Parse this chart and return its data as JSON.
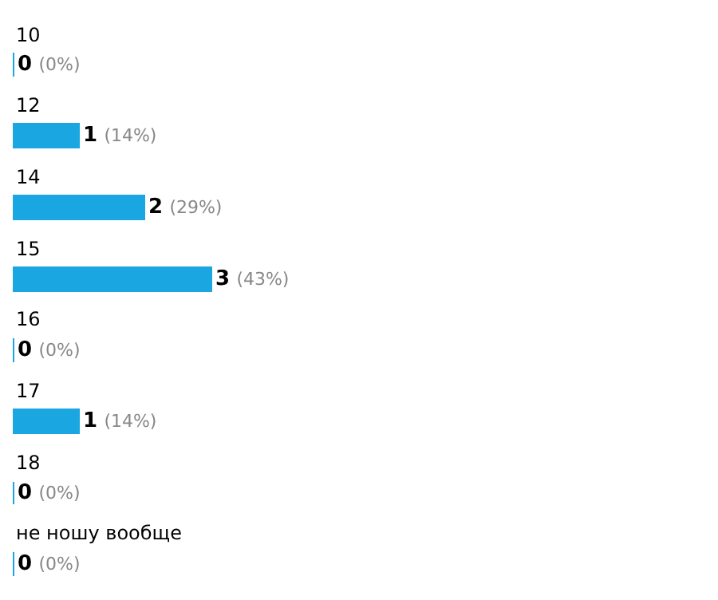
{
  "chart_data": {
    "type": "bar",
    "orientation": "horizontal",
    "categories": [
      "10",
      "12",
      "14",
      "15",
      "16",
      "17",
      "18",
      "не ношу вообще"
    ],
    "values": [
      0,
      1,
      2,
      3,
      0,
      1,
      0,
      0
    ],
    "value_labels": [
      "0 (0%)",
      "1 (14%)",
      "2 (29%)",
      "3 (43%)",
      "0 (0%)",
      "1 (14%)",
      "0 (0%)",
      "0 (0%)"
    ],
    "color": "#1aa6e0",
    "tick_labels": false,
    "grid": false,
    "legend": false
  }
}
